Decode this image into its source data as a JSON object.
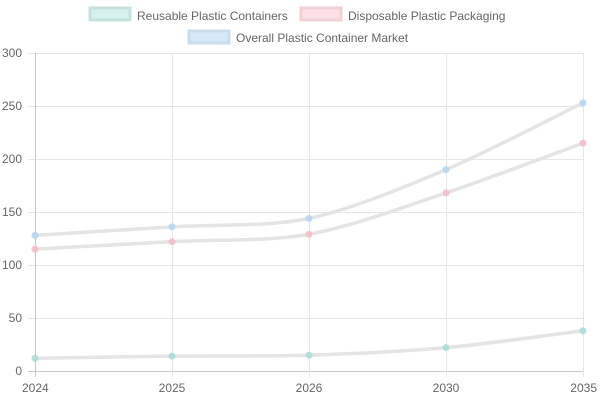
{
  "chart_data": {
    "type": "line",
    "title": "",
    "xlabel": "",
    "ylabel": "",
    "categories": [
      "2024",
      "2025",
      "2026",
      "2030",
      "2035"
    ],
    "ylim": [
      0,
      300
    ],
    "yticks": [
      0,
      50,
      100,
      150,
      200,
      250,
      300
    ],
    "grid": true,
    "legend_position": "top",
    "series": [
      {
        "name": "Reusable Plastic Containers",
        "values": [
          12,
          14,
          15,
          22,
          38
        ],
        "point_color": "#a8dcd6",
        "legend_fill": "#d6f2ef",
        "legend_border": "#c8e0dd"
      },
      {
        "name": "Disposable Plastic Packaging",
        "values": [
          115,
          122,
          129,
          168,
          215
        ],
        "point_color": "#f2bcc8",
        "legend_fill": "#fde0e5",
        "legend_border": "#f0cfd5"
      },
      {
        "name": "Overall Plastic Container Market",
        "values": [
          128,
          136,
          144,
          190,
          253
        ],
        "point_color": "#b5d4ee",
        "legend_fill": "#d6eafa",
        "legend_border": "#c9dceb"
      }
    ],
    "line_color": "#e4e4e4"
  }
}
